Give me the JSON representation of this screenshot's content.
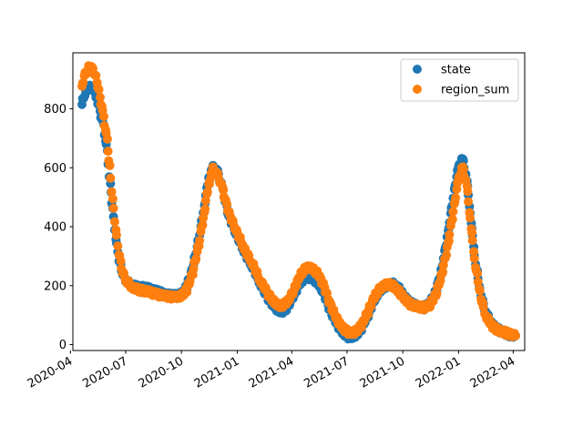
{
  "chart_data": {
    "type": "scatter",
    "title": "",
    "xlabel": "",
    "ylabel": "",
    "x_range": [
      "2020-04-05",
      "2022-04-20"
    ],
    "ylim": [
      -20,
      990
    ],
    "x_ticks": [
      {
        "date": "2020-04-01",
        "label": "2020-04"
      },
      {
        "date": "2020-07-01",
        "label": "2020-07"
      },
      {
        "date": "2020-10-01",
        "label": "2020-10"
      },
      {
        "date": "2021-01-01",
        "label": "2021-01"
      },
      {
        "date": "2021-04-01",
        "label": "2021-04"
      },
      {
        "date": "2021-07-01",
        "label": "2021-07"
      },
      {
        "date": "2021-10-01",
        "label": "2021-10"
      },
      {
        "date": "2022-01-01",
        "label": "2022-01"
      },
      {
        "date": "2022-04-01",
        "label": "2022-04"
      }
    ],
    "y_ticks": [
      0,
      200,
      400,
      600,
      800
    ],
    "grid": false,
    "legend_position": "upper right",
    "series": [
      {
        "name": "state",
        "color": "#1f77b4",
        "points": [
          {
            "date": "2020-04-20",
            "y": 815
          },
          {
            "date": "2020-04-25",
            "y": 850
          },
          {
            "date": "2020-05-01",
            "y": 875
          },
          {
            "date": "2020-05-08",
            "y": 870
          },
          {
            "date": "2020-05-15",
            "y": 840
          },
          {
            "date": "2020-05-20",
            "y": 790
          },
          {
            "date": "2020-05-26",
            "y": 740
          },
          {
            "date": "2020-06-01",
            "y": 650
          },
          {
            "date": "2020-06-06",
            "y": 540
          },
          {
            "date": "2020-06-10",
            "y": 460
          },
          {
            "date": "2020-06-15",
            "y": 360
          },
          {
            "date": "2020-06-20",
            "y": 290
          },
          {
            "date": "2020-06-26",
            "y": 245
          },
          {
            "date": "2020-07-03",
            "y": 215
          },
          {
            "date": "2020-07-12",
            "y": 200
          },
          {
            "date": "2020-07-25",
            "y": 195
          },
          {
            "date": "2020-08-08",
            "y": 190
          },
          {
            "date": "2020-08-22",
            "y": 180
          },
          {
            "date": "2020-09-05",
            "y": 170
          },
          {
            "date": "2020-09-20",
            "y": 165
          },
          {
            "date": "2020-10-01",
            "y": 170
          },
          {
            "date": "2020-10-10",
            "y": 195
          },
          {
            "date": "2020-10-20",
            "y": 260
          },
          {
            "date": "2020-10-30",
            "y": 360
          },
          {
            "date": "2020-11-08",
            "y": 470
          },
          {
            "date": "2020-11-15",
            "y": 560
          },
          {
            "date": "2020-11-22",
            "y": 600
          },
          {
            "date": "2020-11-30",
            "y": 585
          },
          {
            "date": "2020-12-08",
            "y": 530
          },
          {
            "date": "2020-12-18",
            "y": 440
          },
          {
            "date": "2020-12-30",
            "y": 380
          },
          {
            "date": "2021-01-12",
            "y": 320
          },
          {
            "date": "2021-01-25",
            "y": 270
          },
          {
            "date": "2021-02-08",
            "y": 210
          },
          {
            "date": "2021-02-20",
            "y": 160
          },
          {
            "date": "2021-03-05",
            "y": 125
          },
          {
            "date": "2021-03-15",
            "y": 110
          },
          {
            "date": "2021-03-25",
            "y": 125
          },
          {
            "date": "2021-04-05",
            "y": 170
          },
          {
            "date": "2021-04-15",
            "y": 210
          },
          {
            "date": "2021-04-25",
            "y": 230
          },
          {
            "date": "2021-05-05",
            "y": 225
          },
          {
            "date": "2021-05-15",
            "y": 210
          },
          {
            "date": "2021-05-25",
            "y": 170
          },
          {
            "date": "2021-06-05",
            "y": 110
          },
          {
            "date": "2021-06-15",
            "y": 70
          },
          {
            "date": "2021-06-25",
            "y": 40
          },
          {
            "date": "2021-07-05",
            "y": 25
          },
          {
            "date": "2021-07-15",
            "y": 30
          },
          {
            "date": "2021-07-25",
            "y": 55
          },
          {
            "date": "2021-08-05",
            "y": 100
          },
          {
            "date": "2021-08-15",
            "y": 150
          },
          {
            "date": "2021-08-25",
            "y": 185
          },
          {
            "date": "2021-09-05",
            "y": 200
          },
          {
            "date": "2021-09-15",
            "y": 205
          },
          {
            "date": "2021-09-25",
            "y": 190
          },
          {
            "date": "2021-10-05",
            "y": 160
          },
          {
            "date": "2021-10-15",
            "y": 140
          },
          {
            "date": "2021-10-25",
            "y": 130
          },
          {
            "date": "2021-11-05",
            "y": 125
          },
          {
            "date": "2021-11-15",
            "y": 140
          },
          {
            "date": "2021-11-25",
            "y": 180
          },
          {
            "date": "2021-12-05",
            "y": 260
          },
          {
            "date": "2021-12-15",
            "y": 380
          },
          {
            "date": "2021-12-25",
            "y": 520
          },
          {
            "date": "2022-01-01",
            "y": 600
          },
          {
            "date": "2022-01-08",
            "y": 630
          },
          {
            "date": "2022-01-15",
            "y": 560
          },
          {
            "date": "2022-01-22",
            "y": 420
          },
          {
            "date": "2022-01-29",
            "y": 280
          },
          {
            "date": "2022-02-07",
            "y": 170
          },
          {
            "date": "2022-02-15",
            "y": 110
          },
          {
            "date": "2022-02-25",
            "y": 70
          },
          {
            "date": "2022-03-08",
            "y": 50
          },
          {
            "date": "2022-03-18",
            "y": 40
          },
          {
            "date": "2022-03-28",
            "y": 33
          },
          {
            "date": "2022-04-05",
            "y": 30
          }
        ]
      },
      {
        "name": "region_sum",
        "color": "#ff7f0e",
        "points": [
          {
            "date": "2020-04-20",
            "y": 870
          },
          {
            "date": "2020-04-24",
            "y": 910
          },
          {
            "date": "2020-04-30",
            "y": 935
          },
          {
            "date": "2020-05-05",
            "y": 945
          },
          {
            "date": "2020-05-10",
            "y": 925
          },
          {
            "date": "2020-05-15",
            "y": 895
          },
          {
            "date": "2020-05-20",
            "y": 840
          },
          {
            "date": "2020-05-26",
            "y": 770
          },
          {
            "date": "2020-06-01",
            "y": 690
          },
          {
            "date": "2020-06-05",
            "y": 600
          },
          {
            "date": "2020-06-10",
            "y": 490
          },
          {
            "date": "2020-06-15",
            "y": 390
          },
          {
            "date": "2020-06-20",
            "y": 310
          },
          {
            "date": "2020-06-26",
            "y": 250
          },
          {
            "date": "2020-07-03",
            "y": 215
          },
          {
            "date": "2020-07-12",
            "y": 195
          },
          {
            "date": "2020-07-25",
            "y": 185
          },
          {
            "date": "2020-08-08",
            "y": 180
          },
          {
            "date": "2020-08-22",
            "y": 170
          },
          {
            "date": "2020-09-05",
            "y": 165
          },
          {
            "date": "2020-09-20",
            "y": 160
          },
          {
            "date": "2020-10-01",
            "y": 165
          },
          {
            "date": "2020-10-10",
            "y": 185
          },
          {
            "date": "2020-10-20",
            "y": 245
          },
          {
            "date": "2020-10-30",
            "y": 340
          },
          {
            "date": "2020-11-08",
            "y": 450
          },
          {
            "date": "2020-11-15",
            "y": 540
          },
          {
            "date": "2020-11-22",
            "y": 595
          },
          {
            "date": "2020-11-30",
            "y": 575
          },
          {
            "date": "2020-12-08",
            "y": 530
          },
          {
            "date": "2020-12-18",
            "y": 450
          },
          {
            "date": "2020-12-30",
            "y": 390
          },
          {
            "date": "2021-01-12",
            "y": 330
          },
          {
            "date": "2021-01-25",
            "y": 280
          },
          {
            "date": "2021-02-08",
            "y": 220
          },
          {
            "date": "2021-02-20",
            "y": 175
          },
          {
            "date": "2021-03-05",
            "y": 140
          },
          {
            "date": "2021-03-15",
            "y": 130
          },
          {
            "date": "2021-03-25",
            "y": 145
          },
          {
            "date": "2021-04-05",
            "y": 185
          },
          {
            "date": "2021-04-15",
            "y": 235
          },
          {
            "date": "2021-04-25",
            "y": 262
          },
          {
            "date": "2021-05-05",
            "y": 258
          },
          {
            "date": "2021-05-15",
            "y": 240
          },
          {
            "date": "2021-05-25",
            "y": 195
          },
          {
            "date": "2021-06-05",
            "y": 130
          },
          {
            "date": "2021-06-15",
            "y": 85
          },
          {
            "date": "2021-06-25",
            "y": 55
          },
          {
            "date": "2021-07-05",
            "y": 40
          },
          {
            "date": "2021-07-15",
            "y": 42
          },
          {
            "date": "2021-07-25",
            "y": 65
          },
          {
            "date": "2021-08-05",
            "y": 110
          },
          {
            "date": "2021-08-15",
            "y": 160
          },
          {
            "date": "2021-08-25",
            "y": 190
          },
          {
            "date": "2021-09-05",
            "y": 205
          },
          {
            "date": "2021-09-15",
            "y": 200
          },
          {
            "date": "2021-09-25",
            "y": 180
          },
          {
            "date": "2021-10-05",
            "y": 155
          },
          {
            "date": "2021-10-15",
            "y": 135
          },
          {
            "date": "2021-10-25",
            "y": 130
          },
          {
            "date": "2021-11-05",
            "y": 125
          },
          {
            "date": "2021-11-15",
            "y": 135
          },
          {
            "date": "2021-11-25",
            "y": 170
          },
          {
            "date": "2021-12-05",
            "y": 240
          },
          {
            "date": "2021-12-15",
            "y": 340
          },
          {
            "date": "2021-12-25",
            "y": 470
          },
          {
            "date": "2022-01-01",
            "y": 560
          },
          {
            "date": "2022-01-08",
            "y": 600
          },
          {
            "date": "2022-01-15",
            "y": 540
          },
          {
            "date": "2022-01-22",
            "y": 400
          },
          {
            "date": "2022-01-29",
            "y": 270
          },
          {
            "date": "2022-02-07",
            "y": 160
          },
          {
            "date": "2022-02-15",
            "y": 100
          },
          {
            "date": "2022-02-25",
            "y": 65
          },
          {
            "date": "2022-03-08",
            "y": 48
          },
          {
            "date": "2022-03-18",
            "y": 42
          },
          {
            "date": "2022-03-28",
            "y": 35
          },
          {
            "date": "2022-04-05",
            "y": 30
          }
        ]
      }
    ]
  }
}
